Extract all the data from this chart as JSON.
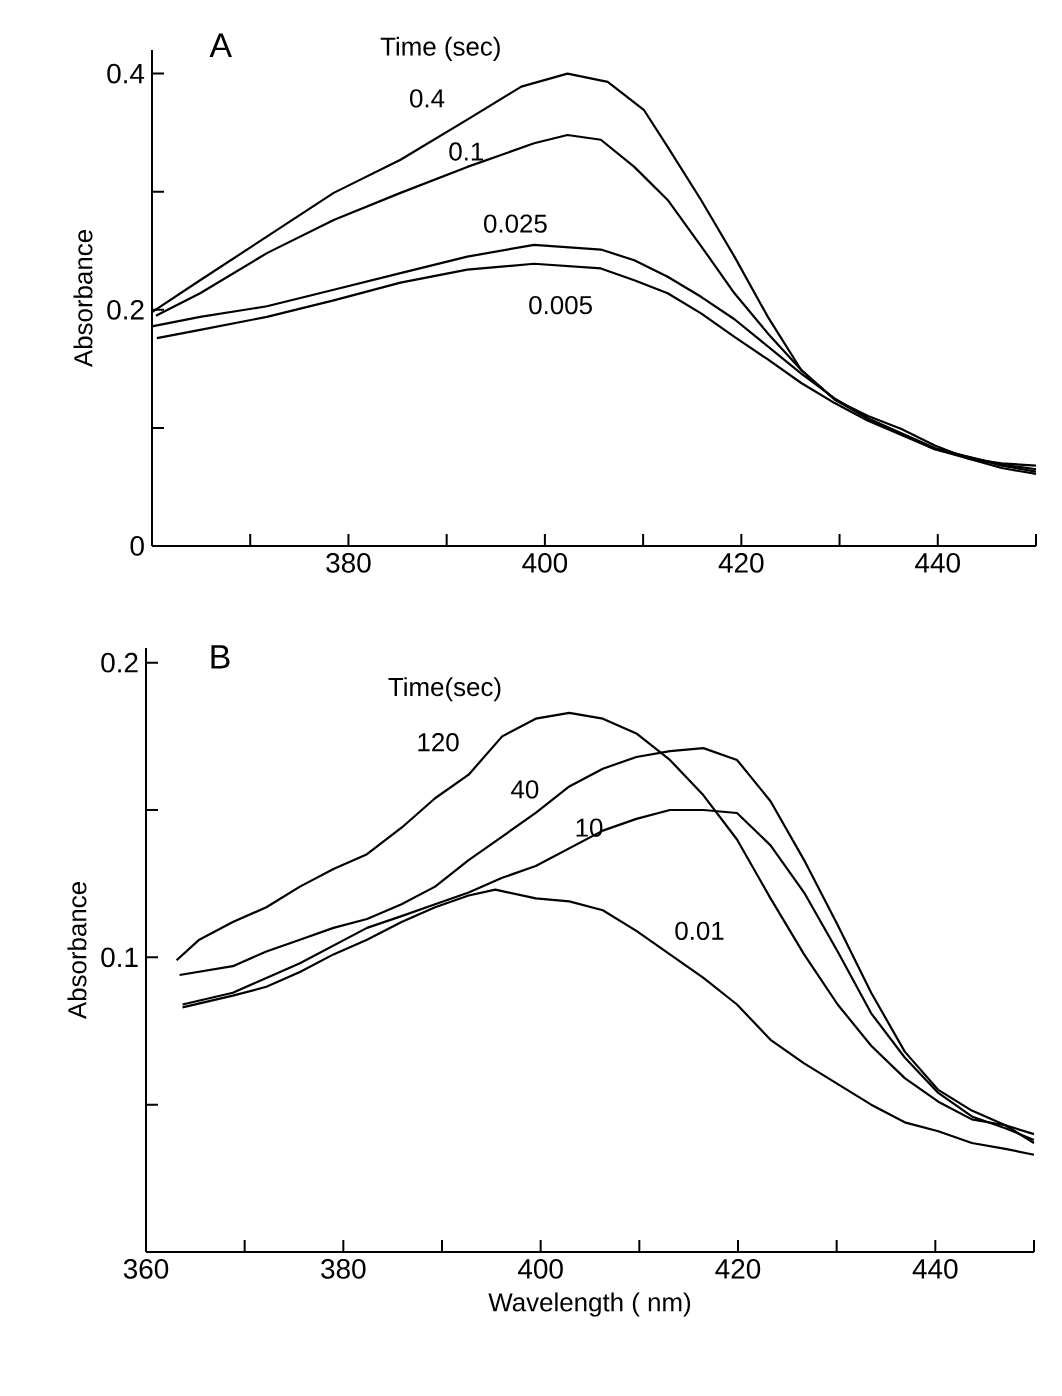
{
  "chart_data": [
    {
      "type": "line",
      "title": "A",
      "legend_title": "Time (sec)",
      "ylabel": "Absorbance",
      "xlim": [
        360,
        450
      ],
      "ylim": [
        0,
        0.42
      ],
      "xticks": [
        {
          "value": 370,
          "label": null
        },
        380,
        {
          "value": 390,
          "label": null
        },
        400,
        {
          "value": 410,
          "label": null
        },
        420,
        {
          "value": 430,
          "label": null
        },
        440,
        {
          "value": 450,
          "label": null
        }
      ],
      "yticks": [
        0,
        {
          "value": 0.1,
          "label": null
        },
        0.2,
        {
          "value": 0.3,
          "label": null
        },
        0.4
      ],
      "series": [
        {
          "name": "0.4",
          "color": "#000000",
          "x": [
            360,
            364.9,
            371.7,
            378.5,
            385.3,
            392.1,
            397.6,
            402.3,
            406.4,
            410.1,
            412.5,
            415.9,
            419.3,
            422.7,
            426.1,
            429.5,
            432.9,
            436.3,
            439.7,
            443.1,
            446.5,
            450
          ],
          "values": [
            0.198,
            0.225,
            0.262,
            0.299,
            0.327,
            0.361,
            0.389,
            0.4,
            0.393,
            0.369,
            0.338,
            0.293,
            0.245,
            0.194,
            0.149,
            0.124,
            0.11,
            0.099,
            0.085,
            0.074,
            0.07,
            0.068
          ]
        },
        {
          "name": "0.1",
          "color": "#000000",
          "x": [
            360.4,
            364.9,
            371.7,
            378.5,
            385.3,
            392.1,
            398.9,
            402.3,
            405.7,
            409.1,
            412.5,
            415.9,
            419.3,
            422.7,
            426.1,
            429.5,
            432.9,
            439.7,
            446.5,
            450
          ],
          "values": [
            0.195,
            0.214,
            0.248,
            0.276,
            0.299,
            0.321,
            0.341,
            0.348,
            0.344,
            0.321,
            0.293,
            0.254,
            0.214,
            0.18,
            0.149,
            0.124,
            0.108,
            0.082,
            0.069,
            0.065
          ]
        },
        {
          "name": "0.025",
          "color": "#000000",
          "x": [
            360,
            364.9,
            371.7,
            378.5,
            385.3,
            392.1,
            398.9,
            405.7,
            409.1,
            412.5,
            415.9,
            419.3,
            422.7,
            426.1,
            429.5,
            432.9,
            439.7,
            446.5,
            450
          ],
          "values": [
            0.186,
            0.194,
            0.203,
            0.217,
            0.231,
            0.245,
            0.255,
            0.251,
            0.242,
            0.228,
            0.211,
            0.192,
            0.169,
            0.146,
            0.125,
            0.108,
            0.083,
            0.068,
            0.063
          ]
        },
        {
          "name": "0.005",
          "color": "#000000",
          "x": [
            360.5,
            364.9,
            371.7,
            378.5,
            385.3,
            392.1,
            398.9,
            405.7,
            409.1,
            412.5,
            415.9,
            419.3,
            422.7,
            426.1,
            429.5,
            432.9,
            439.7,
            446.5,
            450
          ],
          "values": [
            0.176,
            0.183,
            0.194,
            0.208,
            0.223,
            0.234,
            0.239,
            0.235,
            0.225,
            0.214,
            0.197,
            0.177,
            0.158,
            0.138,
            0.121,
            0.106,
            0.082,
            0.066,
            0.061
          ]
        }
      ]
    },
    {
      "type": "line",
      "title": "B",
      "legend_title": "Time(sec)",
      "xlabel": "Wavelength ( nm)",
      "ylabel": "Absorbance",
      "xlim": [
        360,
        450
      ],
      "ylim": [
        0,
        0.205
      ],
      "xticks": [
        360,
        {
          "value": 370,
          "label": null
        },
        380,
        {
          "value": 390,
          "label": null
        },
        400,
        {
          "value": 410,
          "label": null
        },
        420,
        {
          "value": 430,
          "label": null
        },
        440,
        {
          "value": 450,
          "label": null
        }
      ],
      "yticks": [
        {
          "value": 0.05,
          "label": null
        },
        0.1,
        {
          "value": 0.15,
          "label": null
        },
        0.2
      ],
      "series": [
        {
          "name": "120",
          "color": "#000000",
          "x": [
            363.1,
            365.4,
            368.8,
            372.2,
            375.6,
            379.0,
            382.4,
            385.9,
            389.3,
            392.7,
            396.1,
            399.5,
            402.9,
            406.3,
            409.7,
            413.1,
            416.5,
            419.9,
            423.3,
            426.7,
            430.1,
            433.5,
            436.9,
            440.3,
            443.7,
            447.1,
            450
          ],
          "values": [
            0.099,
            0.106,
            0.112,
            0.117,
            0.124,
            0.13,
            0.135,
            0.144,
            0.154,
            0.162,
            0.175,
            0.181,
            0.183,
            0.181,
            0.176,
            0.167,
            0.155,
            0.14,
            0.12,
            0.101,
            0.084,
            0.07,
            0.059,
            0.051,
            0.045,
            0.043,
            0.04
          ]
        },
        {
          "name": "40",
          "color": "#000000",
          "x": [
            363.4,
            368.8,
            372.2,
            375.6,
            379.0,
            382.4,
            385.9,
            389.3,
            392.7,
            396.1,
            399.5,
            402.9,
            406.3,
            409.7,
            413.1,
            416.5,
            419.9,
            423.3,
            426.7,
            430.1,
            433.5,
            436.9,
            440.3,
            443.7,
            447.1,
            450
          ],
          "values": [
            0.094,
            0.097,
            0.102,
            0.106,
            0.11,
            0.113,
            0.118,
            0.124,
            0.133,
            0.141,
            0.149,
            0.158,
            0.164,
            0.168,
            0.17,
            0.171,
            0.167,
            0.153,
            0.133,
            0.111,
            0.088,
            0.068,
            0.055,
            0.048,
            0.043,
            0.037
          ]
        },
        {
          "name": "10",
          "color": "#000000",
          "x": [
            363.7,
            368.8,
            372.2,
            375.6,
            379.0,
            382.4,
            385.9,
            389.3,
            392.7,
            396.1,
            399.5,
            402.9,
            406.3,
            409.7,
            413.1,
            416.5,
            419.9,
            423.3,
            426.7,
            430.1,
            433.5,
            436.9,
            440.3,
            443.7,
            447.1,
            450
          ],
          "values": [
            0.084,
            0.088,
            0.093,
            0.098,
            0.104,
            0.11,
            0.114,
            0.118,
            0.122,
            0.127,
            0.131,
            0.137,
            0.143,
            0.147,
            0.15,
            0.15,
            0.149,
            0.138,
            0.122,
            0.102,
            0.081,
            0.066,
            0.054,
            0.046,
            0.042,
            0.038
          ]
        },
        {
          "name": "0.01",
          "color": "#000000",
          "x": [
            363.7,
            368.8,
            372.2,
            375.6,
            379.0,
            382.4,
            385.9,
            389.3,
            392.7,
            395.4,
            399.5,
            402.9,
            406.3,
            409.7,
            413.1,
            416.5,
            419.9,
            423.3,
            426.7,
            430.1,
            433.5,
            436.9,
            440.3,
            443.7,
            447.1,
            450
          ],
          "values": [
            0.083,
            0.087,
            0.09,
            0.095,
            0.101,
            0.106,
            0.112,
            0.117,
            0.121,
            0.123,
            0.12,
            0.119,
            0.116,
            0.109,
            0.101,
            0.093,
            0.084,
            0.072,
            0.064,
            0.057,
            0.05,
            0.044,
            0.041,
            0.037,
            0.035,
            0.033
          ]
        }
      ]
    }
  ]
}
